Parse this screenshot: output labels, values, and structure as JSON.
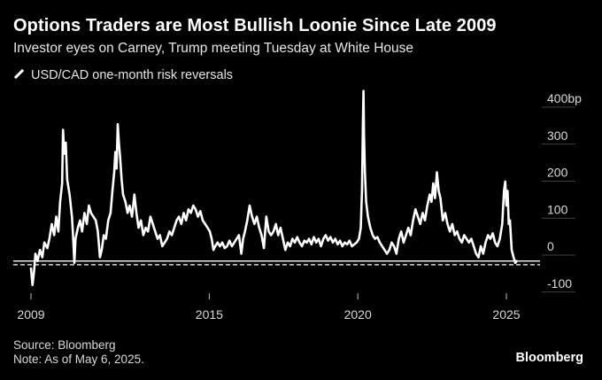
{
  "chart_data": {
    "type": "line",
    "title": "Options Traders are Most Bullish Loonie Since Late 2009",
    "subtitle": "Investor eyes on Carney, Trump meeting Tuesday at White House",
    "unit_label": "bp",
    "ylim": [
      -130,
      460
    ],
    "xlim": [
      2008.9,
      2025.6
    ],
    "y_ticks": [
      {
        "value": 400,
        "label": "400bp"
      },
      {
        "value": 300,
        "label": "300"
      },
      {
        "value": 200,
        "label": "200"
      },
      {
        "value": 100,
        "label": "100"
      },
      {
        "value": 0,
        "label": "0"
      },
      {
        "value": -100,
        "label": "-100"
      }
    ],
    "x_ticks": [
      {
        "value": 2009,
        "label": "2009"
      },
      {
        "value": 2015,
        "label": "2015"
      },
      {
        "value": 2020,
        "label": "2020"
      },
      {
        "value": 2025,
        "label": "2025"
      }
    ],
    "grid": false,
    "reference_lines": [
      {
        "value": -40,
        "style": "solid"
      },
      {
        "value": -50,
        "style": "dashed"
      }
    ],
    "series": [
      {
        "name": "USD/CAD one-month risk reversals",
        "color": "#ffffff",
        "points": [
          [
            2009.0,
            -60
          ],
          [
            2009.05,
            -105
          ],
          [
            2009.1,
            -70
          ],
          [
            2009.15,
            -20
          ],
          [
            2009.22,
            -40
          ],
          [
            2009.3,
            -10
          ],
          [
            2009.38,
            -30
          ],
          [
            2009.45,
            10
          ],
          [
            2009.55,
            -5
          ],
          [
            2009.62,
            20
          ],
          [
            2009.7,
            60
          ],
          [
            2009.78,
            30
          ],
          [
            2009.85,
            80
          ],
          [
            2009.92,
            40
          ],
          [
            2009.98,
            120
          ],
          [
            2010.05,
            170
          ],
          [
            2010.08,
            315
          ],
          [
            2010.12,
            250
          ],
          [
            2010.17,
            280
          ],
          [
            2010.22,
            180
          ],
          [
            2010.3,
            140
          ],
          [
            2010.38,
            80
          ],
          [
            2010.42,
            20
          ],
          [
            2010.46,
            -45
          ],
          [
            2010.5,
            20
          ],
          [
            2010.58,
            50
          ],
          [
            2010.65,
            70
          ],
          [
            2010.72,
            40
          ],
          [
            2010.8,
            90
          ],
          [
            2010.88,
            60
          ],
          [
            2010.95,
            110
          ],
          [
            2011.02,
            90
          ],
          [
            2011.1,
            80
          ],
          [
            2011.18,
            70
          ],
          [
            2011.25,
            40
          ],
          [
            2011.32,
            -30
          ],
          [
            2011.38,
            -10
          ],
          [
            2011.45,
            30
          ],
          [
            2011.52,
            20
          ],
          [
            2011.6,
            70
          ],
          [
            2011.68,
            90
          ],
          [
            2011.74,
            150
          ],
          [
            2011.8,
            200
          ],
          [
            2011.84,
            255
          ],
          [
            2011.88,
            210
          ],
          [
            2011.92,
            330
          ],
          [
            2011.96,
            280
          ],
          [
            2012.0,
            240
          ],
          [
            2012.05,
            180
          ],
          [
            2012.1,
            140
          ],
          [
            2012.18,
            120
          ],
          [
            2012.25,
            90
          ],
          [
            2012.32,
            110
          ],
          [
            2012.4,
            80
          ],
          [
            2012.48,
            140
          ],
          [
            2012.55,
            90
          ],
          [
            2012.62,
            50
          ],
          [
            2012.7,
            70
          ],
          [
            2012.78,
            30
          ],
          [
            2012.86,
            50
          ],
          [
            2012.94,
            40
          ],
          [
            2013.02,
            80
          ],
          [
            2013.1,
            60
          ],
          [
            2013.18,
            40
          ],
          [
            2013.26,
            20
          ],
          [
            2013.34,
            30
          ],
          [
            2013.42,
            0
          ],
          [
            2013.5,
            10
          ],
          [
            2013.58,
            20
          ],
          [
            2013.66,
            40
          ],
          [
            2013.74,
            30
          ],
          [
            2013.82,
            50
          ],
          [
            2013.9,
            70
          ],
          [
            2013.98,
            80
          ],
          [
            2014.06,
            60
          ],
          [
            2014.14,
            90
          ],
          [
            2014.22,
            70
          ],
          [
            2014.3,
            100
          ],
          [
            2014.38,
            90
          ],
          [
            2014.46,
            110
          ],
          [
            2014.54,
            100
          ],
          [
            2014.62,
            80
          ],
          [
            2014.7,
            95
          ],
          [
            2014.78,
            70
          ],
          [
            2014.86,
            60
          ],
          [
            2014.94,
            50
          ],
          [
            2015.02,
            40
          ],
          [
            2015.08,
            20
          ],
          [
            2015.14,
            -10
          ],
          [
            2015.2,
            0
          ],
          [
            2015.28,
            10
          ],
          [
            2015.36,
            0
          ],
          [
            2015.44,
            10
          ],
          [
            2015.52,
            -5
          ],
          [
            2015.6,
            0
          ],
          [
            2015.68,
            15
          ],
          [
            2015.76,
            0
          ],
          [
            2015.84,
            10
          ],
          [
            2015.92,
            20
          ],
          [
            2016.0,
            30
          ],
          [
            2016.08,
            -20
          ],
          [
            2016.14,
            20
          ],
          [
            2016.2,
            40
          ],
          [
            2016.28,
            70
          ],
          [
            2016.36,
            110
          ],
          [
            2016.44,
            80
          ],
          [
            2016.52,
            60
          ],
          [
            2016.6,
            80
          ],
          [
            2016.68,
            50
          ],
          [
            2016.76,
            30
          ],
          [
            2016.84,
            -5
          ],
          [
            2016.92,
            80
          ],
          [
            2017.0,
            40
          ],
          [
            2017.08,
            30
          ],
          [
            2017.16,
            40
          ],
          [
            2017.24,
            60
          ],
          [
            2017.32,
            30
          ],
          [
            2017.4,
            50
          ],
          [
            2017.48,
            20
          ],
          [
            2017.56,
            -10
          ],
          [
            2017.64,
            10
          ],
          [
            2017.72,
            0
          ],
          [
            2017.8,
            20
          ],
          [
            2017.88,
            10
          ],
          [
            2017.96,
            25
          ],
          [
            2018.04,
            10
          ],
          [
            2018.12,
            0
          ],
          [
            2018.2,
            15
          ],
          [
            2018.28,
            10
          ],
          [
            2018.36,
            20
          ],
          [
            2018.44,
            5
          ],
          [
            2018.52,
            25
          ],
          [
            2018.6,
            10
          ],
          [
            2018.68,
            20
          ],
          [
            2018.76,
            0
          ],
          [
            2018.84,
            20
          ],
          [
            2018.92,
            30
          ],
          [
            2019.0,
            15
          ],
          [
            2019.08,
            25
          ],
          [
            2019.16,
            10
          ],
          [
            2019.24,
            20
          ],
          [
            2019.32,
            5
          ],
          [
            2019.4,
            15
          ],
          [
            2019.48,
            0
          ],
          [
            2019.56,
            10
          ],
          [
            2019.64,
            5
          ],
          [
            2019.72,
            15
          ],
          [
            2019.8,
            0
          ],
          [
            2019.88,
            5
          ],
          [
            2019.96,
            10
          ],
          [
            2020.04,
            20
          ],
          [
            2020.1,
            50
          ],
          [
            2020.14,
            150
          ],
          [
            2020.17,
            330
          ],
          [
            2020.19,
            420
          ],
          [
            2020.21,
            300
          ],
          [
            2020.24,
            200
          ],
          [
            2020.28,
            120
          ],
          [
            2020.34,
            80
          ],
          [
            2020.42,
            50
          ],
          [
            2020.5,
            30
          ],
          [
            2020.58,
            20
          ],
          [
            2020.66,
            25
          ],
          [
            2020.74,
            10
          ],
          [
            2020.82,
            0
          ],
          [
            2020.9,
            -10
          ],
          [
            2020.98,
            -20
          ],
          [
            2021.06,
            -10
          ],
          [
            2021.14,
            10
          ],
          [
            2021.22,
            0
          ],
          [
            2021.3,
            -20
          ],
          [
            2021.38,
            20
          ],
          [
            2021.46,
            40
          ],
          [
            2021.54,
            10
          ],
          [
            2021.62,
            30
          ],
          [
            2021.7,
            50
          ],
          [
            2021.78,
            30
          ],
          [
            2021.86,
            70
          ],
          [
            2021.94,
            100
          ],
          [
            2022.02,
            80
          ],
          [
            2022.1,
            60
          ],
          [
            2022.18,
            90
          ],
          [
            2022.26,
            70
          ],
          [
            2022.34,
            110
          ],
          [
            2022.42,
            140
          ],
          [
            2022.48,
            120
          ],
          [
            2022.54,
            170
          ],
          [
            2022.6,
            130
          ],
          [
            2022.66,
            200
          ],
          [
            2022.72,
            150
          ],
          [
            2022.78,
            130
          ],
          [
            2022.86,
            70
          ],
          [
            2022.94,
            90
          ],
          [
            2023.02,
            60
          ],
          [
            2023.1,
            40
          ],
          [
            2023.18,
            60
          ],
          [
            2023.26,
            30
          ],
          [
            2023.34,
            40
          ],
          [
            2023.42,
            20
          ],
          [
            2023.5,
            10
          ],
          [
            2023.58,
            30
          ],
          [
            2023.66,
            20
          ],
          [
            2023.74,
            10
          ],
          [
            2023.82,
            20
          ],
          [
            2023.9,
            0
          ],
          [
            2023.98,
            -20
          ],
          [
            2024.06,
            -30
          ],
          [
            2024.14,
            0
          ],
          [
            2024.22,
            -20
          ],
          [
            2024.3,
            10
          ],
          [
            2024.38,
            30
          ],
          [
            2024.46,
            20
          ],
          [
            2024.54,
            35
          ],
          [
            2024.62,
            10
          ],
          [
            2024.7,
            0
          ],
          [
            2024.78,
            20
          ],
          [
            2024.86,
            60
          ],
          [
            2024.92,
            150
          ],
          [
            2024.96,
            175
          ],
          [
            2025.0,
            110
          ],
          [
            2025.04,
            150
          ],
          [
            2025.08,
            60
          ],
          [
            2025.12,
            70
          ],
          [
            2025.18,
            -10
          ],
          [
            2025.24,
            -30
          ],
          [
            2025.3,
            -45
          ],
          [
            2025.35,
            -40
          ]
        ]
      }
    ]
  },
  "legend": {
    "label": "USD/CAD one-month risk reversals"
  },
  "footer": {
    "source": "Source: Bloomberg",
    "note": "Note: As of May 6, 2025."
  },
  "brand": {
    "name": "Bloomberg"
  }
}
